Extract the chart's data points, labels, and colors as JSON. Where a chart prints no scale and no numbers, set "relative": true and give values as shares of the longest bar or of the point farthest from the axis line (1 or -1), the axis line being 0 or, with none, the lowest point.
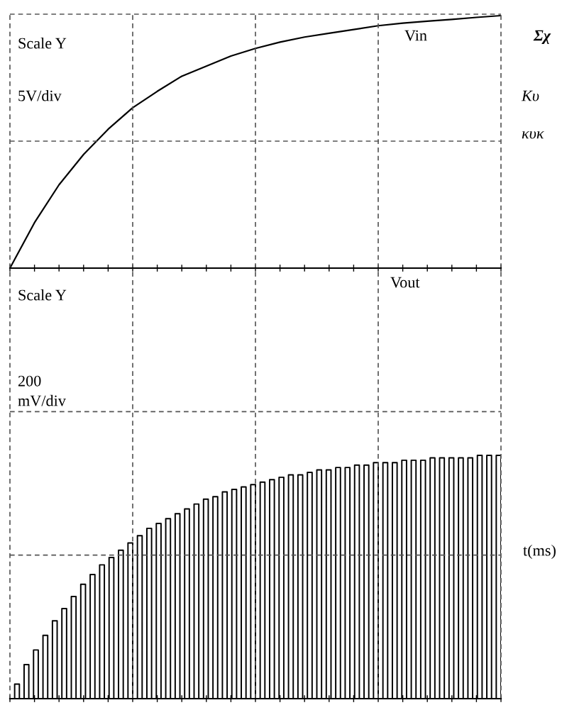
{
  "chart_data": [
    {
      "type": "line",
      "relative": true,
      "grid": true,
      "tick_labels": false,
      "categories": [
        null,
        null,
        null,
        null,
        null,
        null,
        null,
        null,
        null,
        null,
        null,
        null,
        null,
        null,
        null,
        null,
        null,
        null,
        null,
        null,
        null
      ],
      "series": [
        {
          "name": "Vin",
          "color": "#000000",
          "values": [
            0,
            0.18,
            0.33,
            0.45,
            0.55,
            0.635,
            0.7,
            0.76,
            0.8,
            0.84,
            0.87,
            0.895,
            0.915,
            0.93,
            0.945,
            0.96,
            0.97,
            0.978,
            0.985,
            0.993,
            1
          ]
        }
      ],
      "annotations": [
        "Scale Y",
        "5V/div",
        "Σχ",
        "Κυ",
        "κυκ"
      ]
    },
    {
      "type": "step",
      "relative": true,
      "grid": true,
      "tick_labels": false,
      "xlabel": "t(ms)",
      "categories": [
        null,
        null,
        null,
        null,
        null,
        null,
        null,
        null,
        null,
        null,
        null,
        null,
        null,
        null,
        null,
        null,
        null,
        null,
        null,
        null,
        null,
        null,
        null,
        null,
        null,
        null,
        null,
        null,
        null,
        null,
        null,
        null,
        null,
        null,
        null,
        null,
        null,
        null,
        null,
        null,
        null,
        null,
        null,
        null,
        null,
        null,
        null,
        null,
        null,
        null,
        null,
        null,
        null,
        null,
        null,
        null,
        null,
        null,
        null,
        null,
        null,
        null,
        null,
        null,
        null,
        null,
        null,
        null,
        null,
        null,
        null,
        null,
        null,
        null,
        null,
        null,
        null,
        null,
        null,
        null,
        null,
        null,
        null,
        null,
        null,
        null,
        null,
        null,
        null,
        null,
        null,
        null,
        null,
        null,
        null,
        null,
        null,
        null,
        null,
        null,
        null,
        null,
        null,
        null,
        null
      ],
      "series": [
        {
          "name": "Vout",
          "color": "#000000",
          "values": [
            0,
            0.06,
            0,
            0.14,
            0,
            0.2,
            0,
            0.26,
            0,
            0.32,
            0,
            0.37,
            0,
            0.42,
            0,
            0.47,
            0,
            0.51,
            0,
            0.55,
            0,
            0.58,
            0,
            0.61,
            0,
            0.64,
            0,
            0.67,
            0,
            0.7,
            0,
            0.72,
            0,
            0.74,
            0,
            0.76,
            0,
            0.78,
            0,
            0.8,
            0,
            0.82,
            0,
            0.83,
            0,
            0.85,
            0,
            0.86,
            0,
            0.87,
            0,
            0.88,
            0,
            0.89,
            0,
            0.9,
            0,
            0.91,
            0,
            0.92,
            0,
            0.92,
            0,
            0.93,
            0,
            0.94,
            0,
            0.94,
            0,
            0.95,
            0,
            0.95,
            0,
            0.96,
            0,
            0.96,
            0,
            0.97,
            0,
            0.97,
            0,
            0.97,
            0,
            0.98,
            0,
            0.98,
            0,
            0.98,
            0,
            0.99,
            0,
            0.99,
            0,
            0.99,
            0,
            0.99,
            0,
            0.99,
            0,
            1,
            0,
            1,
            0,
            1,
            0
          ]
        }
      ],
      "annotations": [
        "Scale Y",
        "200\nmV/div"
      ]
    }
  ]
}
